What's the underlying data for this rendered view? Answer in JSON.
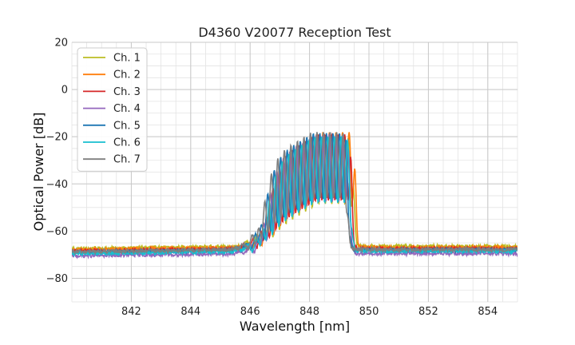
{
  "chart_data": {
    "type": "line",
    "title": "D4360 V20077 Reception Test",
    "xlabel": "Wavelength [nm]",
    "ylabel": "Optical Power [dB]",
    "xlim": [
      840.0,
      855.0
    ],
    "ylim": [
      -90,
      20
    ],
    "x_ticks": [
      842,
      844,
      846,
      848,
      850,
      852,
      854
    ],
    "x_tick_labels": [
      "842",
      "844",
      "846",
      "848",
      "850",
      "852",
      "854"
    ],
    "y_ticks": [
      20,
      0,
      -20,
      -40,
      -60,
      -80
    ],
    "y_tick_labels": [
      "20",
      "0",
      "−20",
      "−40",
      "−60",
      "−80"
    ],
    "x_minor_step": 0.5,
    "y_minor_step": 5,
    "grid": true,
    "legend_position": "top-left",
    "series": [
      {
        "name": "Ch. 1",
        "color": "#bcbd22",
        "base": -66.5,
        "shift": 0.1,
        "peak": -20.5,
        "phase": 0.0
      },
      {
        "name": "Ch. 2",
        "color": "#ff7f0e",
        "base": -67.0,
        "shift": 0.16,
        "peak": -18.0,
        "phase": 0.8
      },
      {
        "name": "Ch. 3",
        "color": "#d62728",
        "base": -67.5,
        "shift": 0.04,
        "peak": -19.0,
        "phase": 1.6
      },
      {
        "name": "Ch. 4",
        "color": "#9467bd",
        "base": -69.5,
        "shift": -0.02,
        "peak": -19.5,
        "phase": 2.4
      },
      {
        "name": "Ch. 5",
        "color": "#1f77b4",
        "base": -68.0,
        "shift": -0.08,
        "peak": -18.5,
        "phase": 3.2
      },
      {
        "name": "Ch. 6",
        "color": "#17becf",
        "base": -68.5,
        "shift": 0.0,
        "peak": -20.0,
        "phase": 4.0
      },
      {
        "name": "Ch. 7",
        "color": "#7f7f7f",
        "base": -67.8,
        "shift": -0.12,
        "peak": -18.0,
        "phase": 4.8
      }
    ]
  }
}
